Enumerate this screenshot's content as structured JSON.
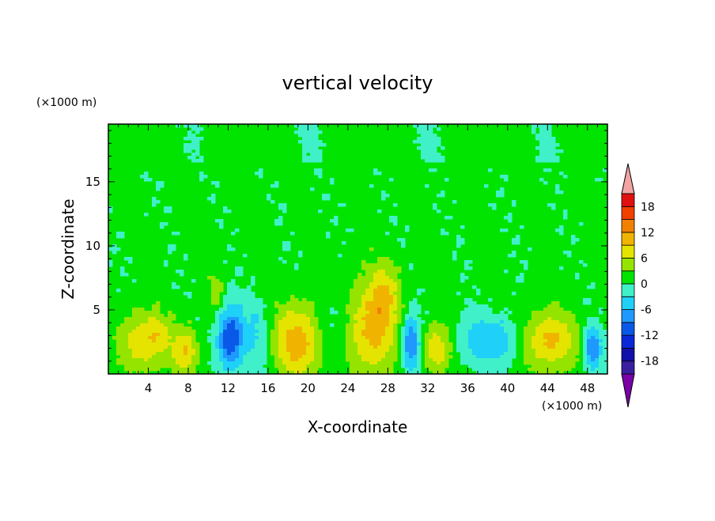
{
  "chart_data": {
    "type": "heatmap",
    "title": "vertical velocity",
    "xlabel": "X-coordinate",
    "ylabel": "Z-coordinate",
    "x_unit": "(×1000 m)",
    "y_unit": "(×1000 m)",
    "xlim": [
      0,
      50
    ],
    "ylim": [
      0,
      19.5
    ],
    "x_ticks": [
      4,
      8,
      12,
      16,
      20,
      24,
      28,
      32,
      36,
      40,
      44,
      48
    ],
    "y_ticks": [
      5,
      10,
      15
    ],
    "colorbar": {
      "levels": [
        -21,
        -18,
        -15,
        -12,
        -9,
        -6,
        -3,
        0,
        3,
        6,
        9,
        12,
        15,
        18,
        21
      ],
      "colors": [
        "#7a00a8",
        "#3a1ea0",
        "#1010a8",
        "#0a28d8",
        "#0a58e8",
        "#1f98ff",
        "#1fd0f8",
        "#40f0c8",
        "#00e400",
        "#94e400",
        "#e4e400",
        "#f0b400",
        "#f08000",
        "#f04000",
        "#e01010",
        "#f2a4a4"
      ],
      "tick_labels": [
        "18",
        "12",
        "6",
        "0",
        "-6",
        "-12",
        "-18"
      ],
      "tick_values": [
        18,
        12,
        6,
        0,
        -6,
        -12,
        -18
      ],
      "extend": "both"
    },
    "features": [
      {
        "x": 3.5,
        "z": 2.5,
        "sx": 1.6,
        "sz": 1.6,
        "value": 8
      },
      {
        "x": 5.2,
        "z": 3.2,
        "sx": 0.8,
        "sz": 0.9,
        "value": 3
      },
      {
        "x": 7.7,
        "z": 1.8,
        "sx": 0.9,
        "sz": 1.3,
        "value": 8
      },
      {
        "x": 12.2,
        "z": 2.8,
        "sx": 0.9,
        "sz": 1.7,
        "value": -13
      },
      {
        "x": 14.8,
        "z": 3.0,
        "sx": 1.1,
        "sz": 2.0,
        "value": -4
      },
      {
        "x": 10.8,
        "z": 6.5,
        "sx": 0.6,
        "sz": 1.4,
        "value": 3
      },
      {
        "x": 19.0,
        "z": 2.5,
        "sx": 1.8,
        "sz": 2.0,
        "value": 10
      },
      {
        "x": 22.5,
        "z": 3.5,
        "sx": 1.2,
        "sz": 1.7,
        "value": -3
      },
      {
        "x": 26.5,
        "z": 3.6,
        "sx": 1.7,
        "sz": 2.6,
        "value": 10
      },
      {
        "x": 27.8,
        "z": 6.4,
        "sx": 0.9,
        "sz": 1.5,
        "value": 5
      },
      {
        "x": 30.3,
        "z": 2.3,
        "sx": 0.7,
        "sz": 1.5,
        "value": -11
      },
      {
        "x": 32.8,
        "z": 1.9,
        "sx": 1.0,
        "sz": 1.3,
        "value": 8
      },
      {
        "x": 36.8,
        "z": 2.6,
        "sx": 1.4,
        "sz": 1.4,
        "value": -5
      },
      {
        "x": 39.5,
        "z": 2.6,
        "sx": 1.2,
        "sz": 1.4,
        "value": -5
      },
      {
        "x": 44.2,
        "z": 2.6,
        "sx": 1.8,
        "sz": 1.6,
        "value": 9
      },
      {
        "x": 48.5,
        "z": 2.0,
        "sx": 0.6,
        "sz": 1.2,
        "value": -10
      }
    ]
  }
}
